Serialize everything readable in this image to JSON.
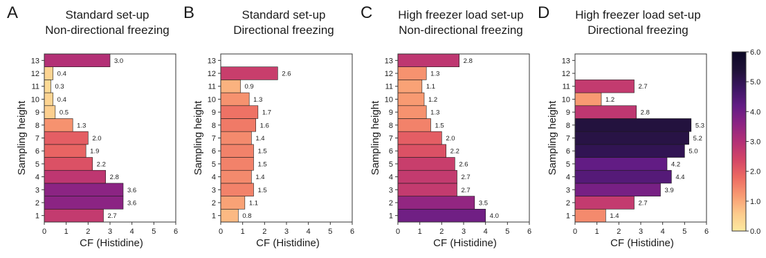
{
  "figure": {
    "colorbar": {
      "min": 0.0,
      "max": 6.0,
      "ticks": [
        "0.0",
        "1.0",
        "2.0",
        "3.0",
        "4.0",
        "5.0",
        "6.0"
      ],
      "colors": [
        "#fdeaa0",
        "#fcc98b",
        "#f89a72",
        "#ec6a62",
        "#d34567",
        "#b33076",
        "#8b2483",
        "#621c84",
        "#3b1661",
        "#1e1137",
        "#0c0826"
      ]
    }
  },
  "chart_data": [
    {
      "type": "bar",
      "orientation": "horizontal",
      "panel_letter": "A",
      "title_lines": [
        "Standard set-up",
        "Non-directional freezing"
      ],
      "xlabel": "CF (Histidine)",
      "ylabel": "Sampling height",
      "xlim": [
        0,
        6
      ],
      "xticks": [
        "0",
        "1",
        "2",
        "3",
        "4",
        "5",
        "6"
      ],
      "categories": [
        "1",
        "2",
        "3",
        "4",
        "5",
        "6",
        "7",
        "8",
        "9",
        "10",
        "11",
        "12",
        "13"
      ],
      "values": [
        2.7,
        3.6,
        3.6,
        2.8,
        2.2,
        1.9,
        2.0,
        1.3,
        0.5,
        0.4,
        0.3,
        0.4,
        3.0
      ],
      "labels": [
        "2.7",
        "3.6",
        "3.6",
        "2.8",
        "2.2",
        "1.9",
        "2.0",
        "1.3",
        "0.5",
        "0.4",
        "0.3",
        "0.4",
        "3.0"
      ]
    },
    {
      "type": "bar",
      "orientation": "horizontal",
      "panel_letter": "B",
      "title_lines": [
        "Standard set-up",
        "Directional freezing"
      ],
      "xlabel": "CF (Histidine)",
      "ylabel": "Sampling height",
      "xlim": [
        0,
        6
      ],
      "xticks": [
        "0",
        "1",
        "2",
        "3",
        "4",
        "5",
        "6"
      ],
      "categories": [
        "1",
        "2",
        "3",
        "4",
        "5",
        "6",
        "7",
        "8",
        "9",
        "10",
        "11",
        "12",
        "13"
      ],
      "values": [
        0.8,
        1.1,
        1.5,
        1.4,
        1.5,
        1.5,
        1.4,
        1.6,
        1.7,
        1.3,
        0.9,
        2.6,
        null
      ],
      "labels": [
        "0.8",
        "1.1",
        "1.5",
        "1.4",
        "1.5",
        "1.5",
        "1.4",
        "1.6",
        "1.7",
        "1.3",
        "0.9",
        "2.6",
        ""
      ]
    },
    {
      "type": "bar",
      "orientation": "horizontal",
      "panel_letter": "C",
      "title_lines": [
        "High freezer load set-up",
        "Non-directional freezing"
      ],
      "xlabel": "CF (Histidine)",
      "ylabel": "Sampling height",
      "xlim": [
        0,
        6
      ],
      "xticks": [
        "0",
        "1",
        "2",
        "3",
        "4",
        "5",
        "6"
      ],
      "categories": [
        "1",
        "2",
        "3",
        "4",
        "5",
        "6",
        "7",
        "8",
        "9",
        "10",
        "11",
        "12",
        "13"
      ],
      "values": [
        4.0,
        3.5,
        2.7,
        2.7,
        2.6,
        2.2,
        2.0,
        1.5,
        1.3,
        1.2,
        1.1,
        1.3,
        2.8
      ],
      "labels": [
        "4.0",
        "3.5",
        "2.7",
        "2.7",
        "2.6",
        "2.2",
        "2.0",
        "1.5",
        "1.3",
        "1.2",
        "1.1",
        "1.3",
        "2.8"
      ]
    },
    {
      "type": "bar",
      "orientation": "horizontal",
      "panel_letter": "D",
      "title_lines": [
        "High freezer load set-up",
        "Directional freezing"
      ],
      "xlabel": "CF (Histidine)",
      "ylabel": "Sampling height",
      "xlim": [
        0,
        6
      ],
      "xticks": [
        "0",
        "1",
        "2",
        "3",
        "4",
        "5",
        "6"
      ],
      "categories": [
        "1",
        "2",
        "3",
        "4",
        "5",
        "6",
        "7",
        "8",
        "9",
        "10",
        "11",
        "12",
        "13"
      ],
      "values": [
        1.4,
        2.7,
        3.9,
        4.4,
        4.2,
        5.0,
        5.2,
        5.3,
        2.8,
        1.2,
        2.7,
        null,
        null
      ],
      "labels": [
        "1.4",
        "2.7",
        "3.9",
        "4.4",
        "4.2",
        "5.0",
        "5.2",
        "5.3",
        "2.8",
        "1.2",
        "2.7",
        "",
        ""
      ]
    }
  ]
}
